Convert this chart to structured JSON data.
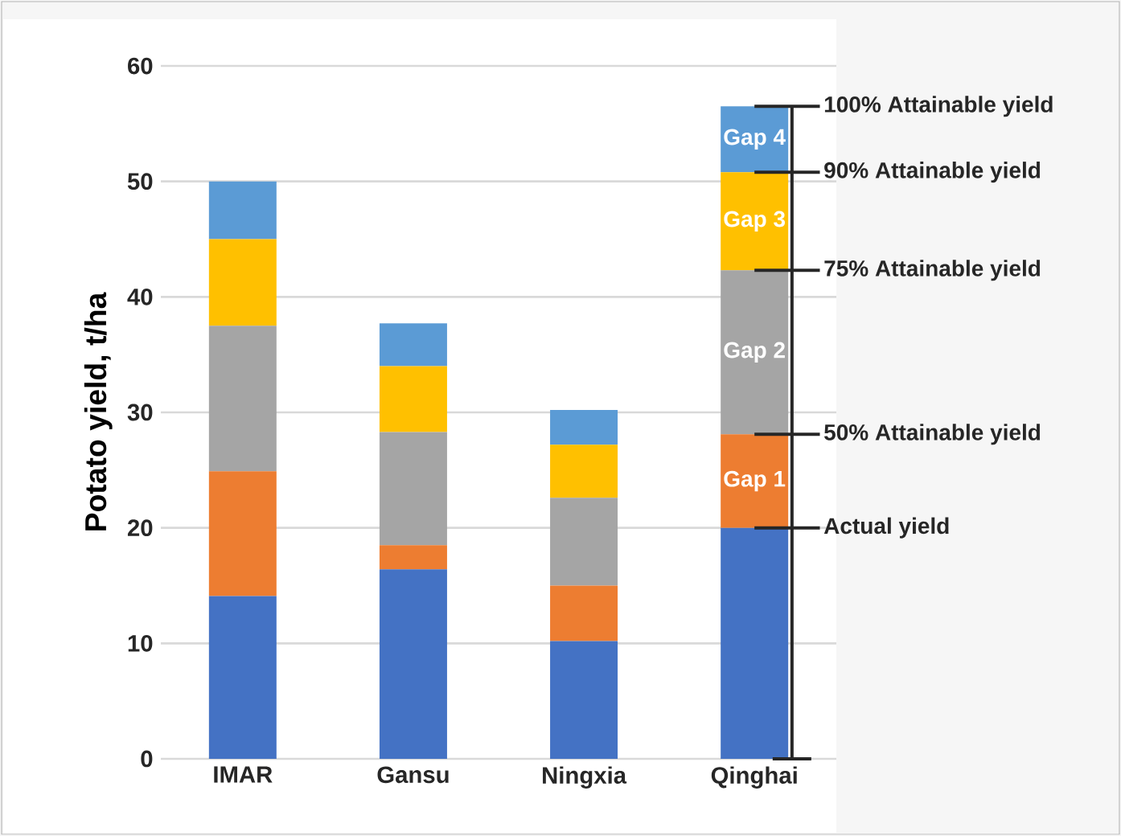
{
  "chart_data": {
    "type": "bar",
    "stacked": true,
    "ylabel": "Potato yield, t/ha",
    "categories": [
      "IMAR",
      "Gansu",
      "Ningxia",
      "Qinghai"
    ],
    "series": [
      {
        "color": "#4472c4",
        "values": [
          14.1,
          16.4,
          10.2,
          20.0
        ]
      },
      {
        "name": "Gap 1",
        "color": "#ed7d31",
        "values": [
          10.8,
          2.1,
          4.8,
          8.1
        ]
      },
      {
        "name": "Gap 2",
        "color": "#a5a5a5",
        "values": [
          12.6,
          9.8,
          7.6,
          14.2
        ]
      },
      {
        "name": "Gap 3",
        "color": "#ffc000",
        "values": [
          7.5,
          5.7,
          4.6,
          8.5
        ]
      },
      {
        "name": "Gap 4",
        "color": "#5b9bd5",
        "values": [
          5.0,
          3.7,
          3.0,
          5.7
        ]
      }
    ],
    "ylim": [
      0,
      60
    ],
    "yticks": [
      0,
      10,
      20,
      30,
      40,
      50,
      60
    ],
    "grid": "y",
    "legend": false,
    "annotations": [
      {
        "text": "100% Attainable yield",
        "x": "Qinghai",
        "y": 56.5
      },
      {
        "text": "90% Attainable yield",
        "x": "Qinghai",
        "y": 50.8
      },
      {
        "text": "75% Attainable yield",
        "x": "Qinghai",
        "y": 42.3
      },
      {
        "text": "50% Attainable yield",
        "x": "Qinghai",
        "y": 28.1
      },
      {
        "text": "Actual yield",
        "x": "Qinghai",
        "y": 20.0
      }
    ]
  }
}
